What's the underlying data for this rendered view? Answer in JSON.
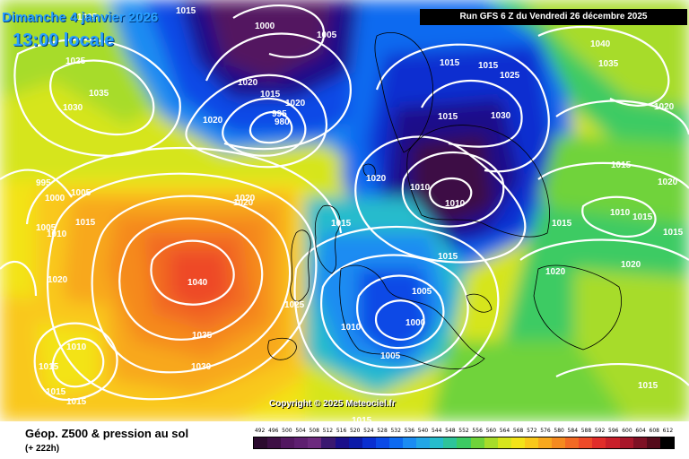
{
  "header": {
    "date": "Dimanche 4 janvier 2026",
    "time": "13:00 locale",
    "run": "Run GFS 6 Z du Vendredi 26 décembre 2025"
  },
  "copyright": "Copyright © 2025 Meteociel.fr",
  "footer": {
    "title": "Géop. Z500 & pression au sol",
    "subtitle": "(+ 222h)"
  },
  "scale": {
    "ticks": [
      "492",
      "496",
      "500",
      "504",
      "508",
      "512",
      "516",
      "520",
      "524",
      "528",
      "532",
      "536",
      "540",
      "544",
      "548",
      "552",
      "556",
      "560",
      "564",
      "568",
      "572",
      "576",
      "580",
      "584",
      "588",
      "592",
      "596",
      "600",
      "604",
      "608",
      "612"
    ],
    "colors": [
      "#2b0a2e",
      "#3d0f45",
      "#521760",
      "#5e1f70",
      "#6c2a7e",
      "#3a1870",
      "#1a0f8a",
      "#0b1aa8",
      "#0a2fd0",
      "#0b4ae6",
      "#0d6af0",
      "#1b8cf2",
      "#23a6e6",
      "#26bccc",
      "#2ec49a",
      "#3ccb63",
      "#6fd33a",
      "#a7dc2a",
      "#d6e51c",
      "#f3e318",
      "#f9c81a",
      "#f8a81d",
      "#f58a1f",
      "#f26a24",
      "#ee4a28",
      "#e12d2a",
      "#c91f2a",
      "#a8162a",
      "#7e1024",
      "#540a1a",
      "#000000"
    ]
  },
  "pressure_labels": [
    "1015",
    "1000",
    "1005",
    "1005",
    "1025",
    "1035",
    "1030",
    "1020",
    "1020",
    "995",
    "980",
    "1015",
    "1020",
    "1020",
    "995",
    "1000",
    "1005",
    "1015",
    "1005",
    "1010",
    "1020",
    "1040",
    "1035",
    "1030",
    "1025",
    "1010",
    "1015",
    "1015",
    "1015",
    "1015",
    "1015",
    "1005",
    "1010",
    "1000",
    "1005",
    "1015",
    "1010",
    "1010",
    "1020",
    "1015",
    "1025",
    "1015",
    "1015",
    "1030",
    "1040",
    "1035",
    "1020",
    "1015",
    "1010",
    "1015",
    "1015",
    "1020",
    "1020",
    "1020",
    "1015",
    "1020",
    "1015"
  ],
  "colors": {
    "background_accent": "#2aa0ff",
    "isobar": "#ffffff"
  }
}
